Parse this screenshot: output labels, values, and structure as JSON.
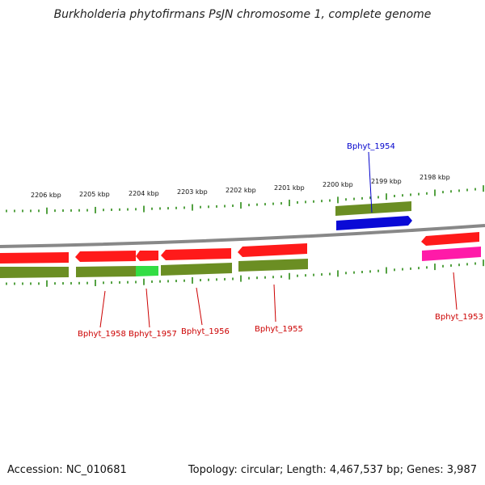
{
  "title": "Burkholderia phytofirmans PsJN chromosome 1, complete genome",
  "footer": {
    "accession": "Accession: NC_010681",
    "topology": "Topology: circular; Length: 4,467,537 bp; Genes: 3,987"
  },
  "colors": {
    "tick": "#2a8a14",
    "backbone": "#888888",
    "olive": "#6b8e23",
    "red_feature": "#ff1a1a",
    "blue_feature": "#0a0ad6",
    "green_feature": "#33dd44",
    "magenta_feature": "#ff1aa8",
    "label_red": "#cc0000",
    "label_blue": "#0000cc"
  },
  "scale_labels": [
    "2206 kbp",
    "2205 kbp",
    "2204 kbp",
    "2203 kbp",
    "2202 kbp",
    "2201 kbp",
    "2200 kbp",
    "2199 kbp",
    "2198 kbp"
  ],
  "gene_labels": [
    "Bphyt_1958",
    "Bphyt_1957",
    "Bphyt_1956",
    "Bphyt_1955",
    "Bphyt_1954",
    "Bphyt_1953"
  ]
}
